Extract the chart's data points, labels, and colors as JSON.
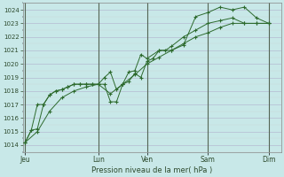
{
  "background_color": "#c8e8e8",
  "grid_color_major": "#b0b0cc",
  "grid_color_minor": "#c8d8d8",
  "line_color": "#2d6a2d",
  "xlabel_text": "Pression niveau de la mer( hPa )",
  "ylim": [
    1013.5,
    1024.5
  ],
  "yticks": [
    1014,
    1015,
    1016,
    1017,
    1018,
    1019,
    1020,
    1021,
    1022,
    1023,
    1024
  ],
  "x_day_labels": [
    "Jeu",
    "Lun",
    "Ven",
    "Sam",
    "Dim"
  ],
  "x_day_positions": [
    0,
    3,
    5,
    7.5,
    10
  ],
  "xlim": [
    -0.1,
    10.5
  ],
  "series1_x": [
    0,
    0.25,
    0.5,
    0.75,
    1.0,
    1.25,
    1.5,
    1.75,
    2.0,
    2.25,
    2.5,
    2.75,
    3.0,
    3.25,
    3.5,
    3.75,
    4.0,
    4.25,
    4.5,
    4.75,
    5.0,
    5.25,
    5.5,
    5.75,
    6.0,
    6.5,
    7.0,
    7.5,
    8.0,
    8.5,
    9.0,
    9.5,
    10.0
  ],
  "series1_y": [
    1014.2,
    1015.1,
    1015.2,
    1017.0,
    1017.7,
    1018.0,
    1018.1,
    1018.3,
    1018.5,
    1018.5,
    1018.5,
    1018.5,
    1018.5,
    1018.5,
    1017.2,
    1017.2,
    1018.5,
    1018.7,
    1019.3,
    1019.0,
    1020.2,
    1020.4,
    1021.0,
    1021.0,
    1021.3,
    1022.0,
    1022.5,
    1023.0,
    1023.2,
    1023.4,
    1023.0,
    1023.0,
    1023.0
  ],
  "series2_x": [
    0,
    0.25,
    0.5,
    0.75,
    1.0,
    1.25,
    1.5,
    1.75,
    2.0,
    2.25,
    2.5,
    2.75,
    3.0,
    3.25,
    3.5,
    3.75,
    4.0,
    4.25,
    4.5,
    4.75,
    5.0,
    5.5,
    6.0,
    6.5,
    7.0,
    7.5,
    8.0,
    8.5,
    9.0,
    9.5,
    10.0
  ],
  "series2_y": [
    1014.2,
    1015.1,
    1017.0,
    1017.0,
    1017.7,
    1018.0,
    1018.1,
    1018.3,
    1018.5,
    1018.5,
    1018.5,
    1018.5,
    1018.5,
    1019.0,
    1019.4,
    1018.1,
    1018.5,
    1019.4,
    1019.5,
    1020.7,
    1020.4,
    1021.0,
    1021.0,
    1021.4,
    1023.5,
    1023.8,
    1024.2,
    1024.0,
    1024.2,
    1023.4,
    1023.0
  ],
  "series3_x": [
    0,
    0.5,
    1.0,
    1.5,
    2.0,
    2.5,
    3.0,
    3.5,
    4.0,
    4.5,
    5.0,
    5.5,
    6.0,
    6.5,
    7.0,
    7.5,
    8.0,
    8.5,
    9.0,
    9.5,
    10.0
  ],
  "series3_y": [
    1014.2,
    1015.0,
    1016.5,
    1017.5,
    1018.0,
    1018.3,
    1018.5,
    1017.8,
    1018.5,
    1019.2,
    1020.0,
    1020.5,
    1021.0,
    1021.5,
    1022.0,
    1022.3,
    1022.7,
    1023.0,
    1023.0,
    1023.0,
    1023.0
  ]
}
